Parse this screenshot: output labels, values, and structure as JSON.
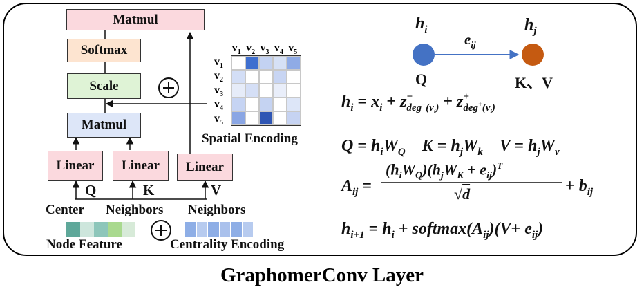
{
  "title": "GraphomerConv Layer",
  "blocks": {
    "matmul_top": "Matmul",
    "softmax": "Softmax",
    "scale": "Scale",
    "matmul_mid": "Matmul",
    "linear_q": "Linear",
    "linear_k": "Linear",
    "linear_v": "Linear"
  },
  "inputs": {
    "q_label": "Q",
    "k_label": "K",
    "v_label": "V",
    "center": "Center",
    "neighbors_k": "Neighbors",
    "neighbors_v": "Neighbors",
    "node_feature": "Node Feature",
    "centrality_encoding": "Centrality Encoding"
  },
  "spatial_encoding": {
    "label": "Spatial Encoding",
    "col_labels": [
      "v",
      "v",
      "v",
      "v",
      "v"
    ],
    "col_subs": [
      "1",
      "2",
      "3",
      "4",
      "5"
    ],
    "row_labels": [
      "v",
      "v",
      "v",
      "v",
      "v"
    ],
    "row_subs": [
      "1",
      "2",
      "3",
      "4",
      "5"
    ],
    "cell_colors": [
      [
        "#ffffff",
        "#3f6fcf",
        "#c3d2f2",
        "#d6e1f6",
        "#8fabe6"
      ],
      [
        "#d3def6",
        "#ffffff",
        "#ffffff",
        "#c8d5f3",
        "#ffffff"
      ],
      [
        "#e6ecf9",
        "#d5dff6",
        "#ffffff",
        "#e9eefa",
        "#ffffff"
      ],
      [
        "#c6d4f3",
        "#ffffff",
        "#c5d3f2",
        "#ffffff",
        "#dde6f8"
      ],
      [
        "#8aa6e4",
        "#ffffff",
        "#2f56b4",
        "#ffffff",
        "#c6d3f2"
      ]
    ]
  },
  "node_feature_colors": [
    "#5fa89a",
    "#cde6dc",
    "#8dc6ba",
    "#a9d98e",
    "#d7ead8"
  ],
  "centrality_colors": [
    "#8eaee6",
    "#b7cbef",
    "#8eaee6",
    "#aac1ec",
    "#8eaee6",
    "#b7cbef"
  ],
  "graph": {
    "node_i_label": "h",
    "node_i_sub": "i",
    "node_j_label": "h",
    "node_j_sub": "j",
    "edge_label": "e",
    "edge_sub": "ij",
    "q_label": "Q",
    "kv_label": "K、V",
    "node_i_color": "#4472c4",
    "node_j_color": "#c55a11"
  },
  "equations": {
    "eq1": "h_i = x_i + z⁻_deg⁻(v_i) + z⁺_deg⁺(v_i)",
    "eq2": "Q = h_i W_Q    K = h_j W_k    V = h_j W_v",
    "eq3": "A_ij = (h_i W_Q)(h_j W_K + e_ij)^T / √d + b_ij",
    "eq4": "h_i+1 = h_i + softmax(A_ij)(V + e_ij)"
  }
}
